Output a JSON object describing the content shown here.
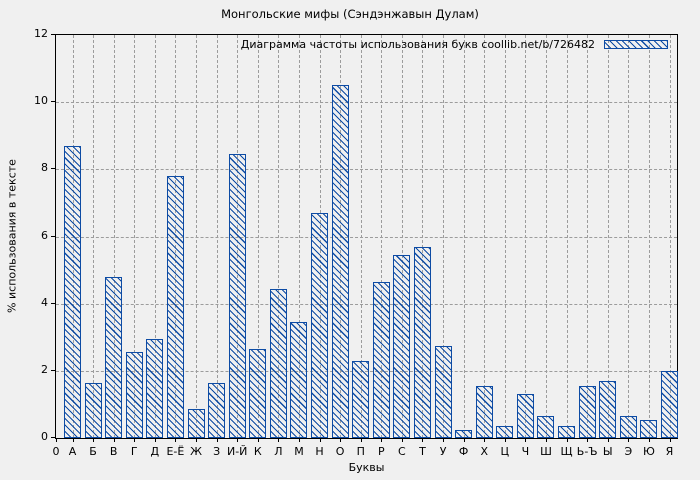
{
  "chart_data": {
    "type": "bar",
    "title": "Монгольские мифы (Сэндэнжавын Дулам)",
    "legend": "Диаграмма частоты использования букв coollib.net/b/726482",
    "legend_position": "top-right",
    "legend_swatch_icon": "hatched-bar-swatch",
    "xlabel": "Буквы",
    "ylabel": "% использования в тексте",
    "ylim": [
      0,
      12
    ],
    "yticks": [
      0,
      2,
      4,
      6,
      8,
      10,
      12
    ],
    "origin_tick_label": "0",
    "grid": true,
    "categories": [
      "А",
      "Б",
      "В",
      "Г",
      "Д",
      "Е-Ё",
      "Ж",
      "З",
      "И-Й",
      "К",
      "Л",
      "М",
      "Н",
      "О",
      "П",
      "Р",
      "С",
      "Т",
      "У",
      "Ф",
      "Х",
      "Ц",
      "Ч",
      "Ш",
      "Щ",
      "Ь-Ъ",
      "Ы",
      "Э",
      "Ю",
      "Я"
    ],
    "values": [
      8.7,
      1.65,
      4.8,
      2.55,
      2.95,
      7.8,
      0.85,
      1.65,
      8.45,
      2.65,
      4.45,
      3.45,
      6.7,
      10.5,
      2.3,
      4.65,
      5.45,
      5.7,
      2.75,
      0.25,
      1.55,
      0.35,
      1.3,
      0.65,
      0.35,
      1.55,
      1.7,
      0.65,
      0.55,
      2.0
    ],
    "colors": {
      "bar": "#0d4ba4",
      "grid": "#9c9c9c",
      "axis": "#000000",
      "background": "#f0f0f0"
    }
  }
}
